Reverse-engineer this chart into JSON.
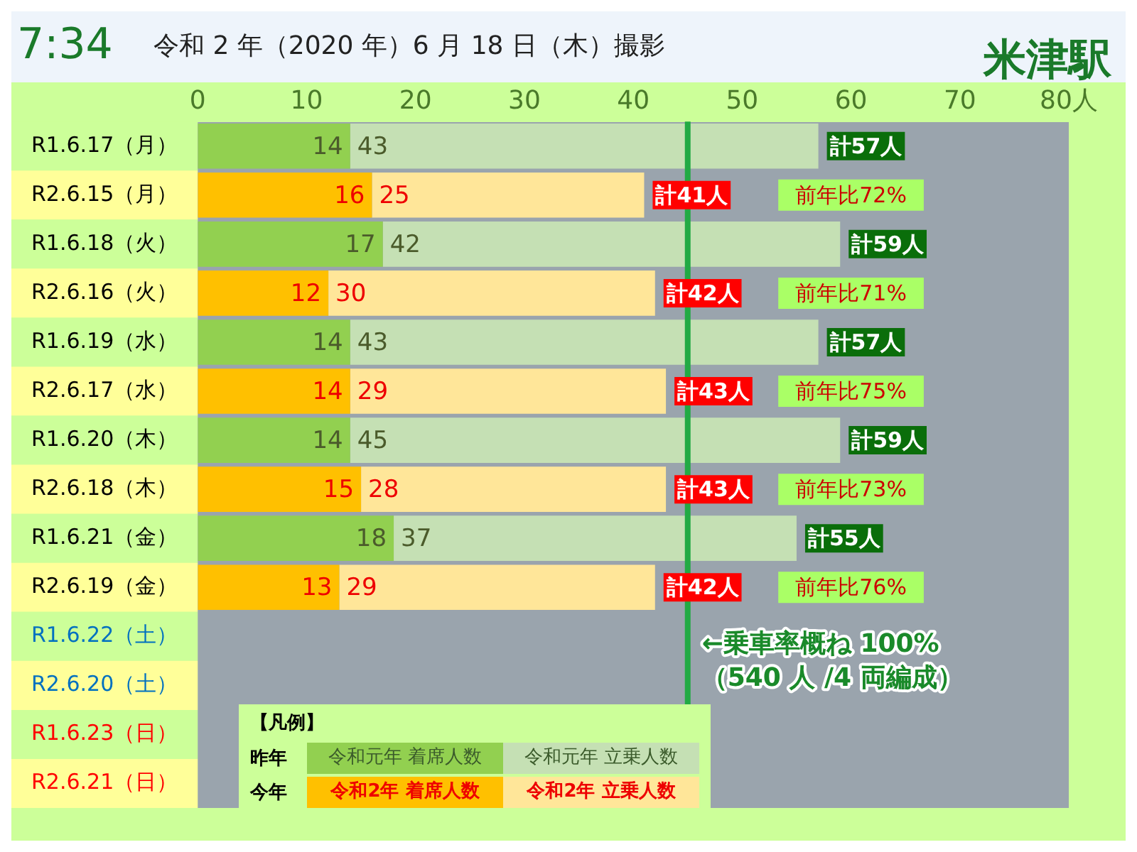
{
  "chart_data": {
    "type": "bar",
    "orientation": "horizontal",
    "stacked": true,
    "title": "令和 2 年（2020 年）6 月 18 日（木）撮影",
    "categories": [
      "R1.6.17（月）",
      "R2.6.15（月）",
      "R1.6.18（火）",
      "R2.6.16（火）",
      "R1.6.19（水）",
      "R2.6.17（水）",
      "R1.6.20（木）",
      "R2.6.18（木）",
      "R1.6.21（金）",
      "R2.6.19（金）",
      "R1.6.22（土）",
      "R2.6.20（土）",
      "R1.6.23（日）",
      "R2.6.21（日）"
    ],
    "series": [
      {
        "name": "令和元年 着席人数",
        "color": "#92d050",
        "values": [
          14,
          null,
          17,
          null,
          14,
          null,
          14,
          null,
          18,
          null,
          null,
          null,
          null,
          null
        ]
      },
      {
        "name": "令和元年 立乗人数",
        "color": "#c5e0b4",
        "values": [
          43,
          null,
          42,
          null,
          43,
          null,
          45,
          null,
          37,
          null,
          null,
          null,
          null,
          null
        ]
      },
      {
        "name": "令和2年 着席人数",
        "color": "#ffc000",
        "values": [
          null,
          16,
          null,
          12,
          null,
          14,
          null,
          15,
          null,
          13,
          null,
          null,
          null,
          null
        ]
      },
      {
        "name": "令和2年 立乗人数",
        "color": "#ffe699",
        "values": [
          null,
          25,
          null,
          30,
          null,
          29,
          null,
          28,
          null,
          29,
          null,
          null,
          null,
          null
        ]
      }
    ],
    "data_labels": true,
    "totals": [
      "計57人",
      "計41人",
      "計59人",
      "計42人",
      "計57人",
      "計43人",
      "計59人",
      "計43人",
      "計55人",
      "計42人",
      null,
      null,
      null,
      null
    ],
    "xlim": [
      0,
      80
    ],
    "xticks": [
      0,
      10,
      20,
      30,
      40,
      50,
      60,
      70,
      {
        "value": 80,
        "label": "80人"
      }
    ],
    "grid": false,
    "legend": "bottom",
    "legend_title": "【凡例】",
    "ref_lines": [
      {
        "axis": "x",
        "value": 45,
        "label": "←乗車率概ね 100%\n（540 人 /4 両編成）",
        "color": "#22aa44",
        "line_style": "solid"
      }
    ],
    "annotations": [
      "7:34",
      "米津駅",
      "昨年",
      "今年",
      "前年比72%",
      "前年比71%",
      "前年比75%",
      "前年比73%",
      "前年比76%"
    ]
  }
}
